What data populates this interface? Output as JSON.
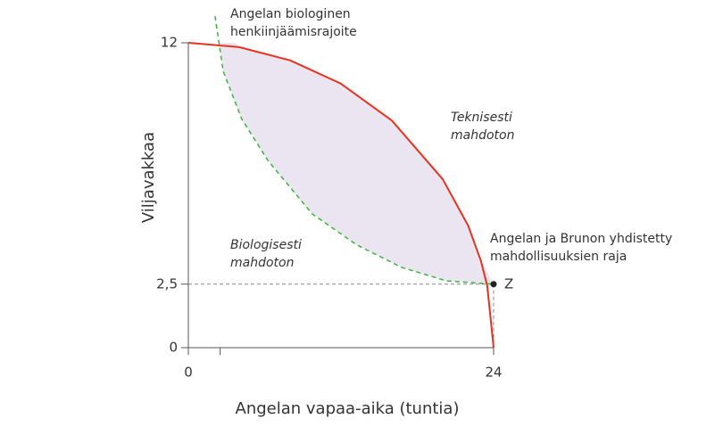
{
  "chart_data": {
    "type": "line",
    "x_label": "Angelan vapaa-aika (tuntia)",
    "y_label": "Viljavakkaa",
    "xlim": [
      0,
      24
    ],
    "ylim": [
      0,
      12
    ],
    "xticks": [
      0,
      {
        "value": 2.5,
        "label": null
      },
      24
    ],
    "yticks": [
      0,
      {
        "value": 2.5,
        "label": "2,5"
      },
      12
    ],
    "series": [
      {
        "name": "Angelan ja Brunon yhdistetty mahdollisuuksien raja",
        "color": "#e8321e",
        "style": "solid",
        "x": [
          0,
          4,
          8,
          12,
          16,
          20,
          22,
          23,
          23.5,
          24
        ],
        "values": [
          12,
          11.83,
          11.31,
          10.39,
          8.94,
          6.63,
          4.8,
          3.42,
          2.43,
          0
        ]
      },
      {
        "name": "Angelan biologinen henkiinjäämisrajoite",
        "color": "#3cb43c",
        "style": "dashed",
        "x": [
          2.1,
          2.74,
          4.2,
          6.25,
          9.75,
          13.26,
          16.77,
          20.28,
          24
        ],
        "values": [
          13.05,
          10.88,
          9.0,
          7.37,
          5.26,
          4.04,
          3.16,
          2.63,
          2.5
        ]
      }
    ],
    "point": {
      "label": "Z",
      "x": 24,
      "y": 2.5
    },
    "annotations": [
      "Teknisesti mahdoton",
      "Biologisesti mahdoton"
    ]
  }
}
